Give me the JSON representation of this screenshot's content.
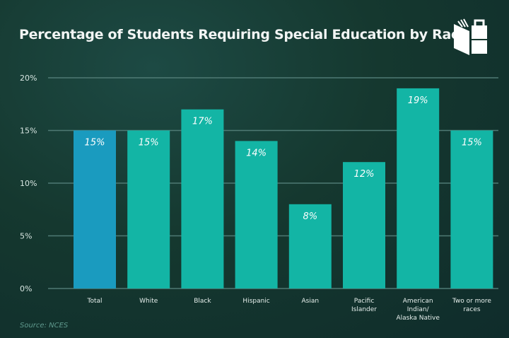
{
  "chart_data": {
    "type": "bar",
    "title": "Percentage of Students Requiring Special Education by Race",
    "categories": [
      "Total",
      "White",
      "Black",
      "Hispanic",
      "Asian",
      "Pacific Islander",
      "American Indian/ Alaska Native",
      "Two or more races"
    ],
    "category_lines": [
      [
        "Total"
      ],
      [
        "White"
      ],
      [
        "Black"
      ],
      [
        "Hispanic"
      ],
      [
        "Asian"
      ],
      [
        "Pacific",
        "Islander"
      ],
      [
        "American",
        "Indian/",
        "Alaska Native"
      ],
      [
        "Two or more",
        "races"
      ]
    ],
    "values": [
      15,
      15,
      17,
      14,
      8,
      12,
      19,
      15
    ],
    "data_labels": [
      "15%",
      "15%",
      "17%",
      "14%",
      "8%",
      "12%",
      "19%",
      "15%"
    ],
    "ylim": [
      0,
      20
    ],
    "yticks": [
      0,
      5,
      10,
      15,
      20
    ],
    "ytick_labels": [
      "0%",
      "5%",
      "10%",
      "15%",
      "20%"
    ],
    "grid": true,
    "colors": {
      "highlight": "#1a9bbf",
      "bars": "#13b5a5",
      "grid": "#4f7a74"
    },
    "source": "Source: NCES"
  },
  "logo": {
    "icon": "book-briefcase-logo-icon"
  }
}
